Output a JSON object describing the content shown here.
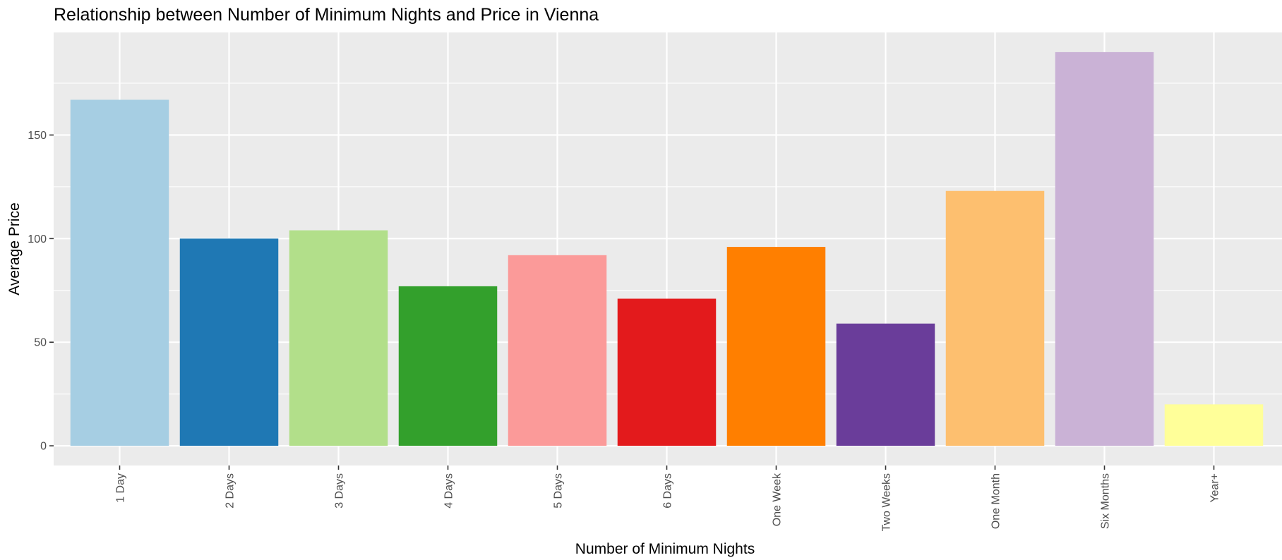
{
  "chart_data": {
    "type": "bar",
    "title": "Relationship between Number of Minimum Nights and Price in Vienna",
    "xlabel": "Number of Minimum Nights",
    "ylabel": "Average Price",
    "categories": [
      "1 Day",
      "2 Days",
      "3 Days",
      "4 Days",
      "5 Days",
      "6 Days",
      "One Week",
      "Two Weeks",
      "One Month",
      "Six Months",
      "Year+"
    ],
    "values": [
      167,
      100,
      104,
      77,
      92,
      71,
      96,
      59,
      123,
      190,
      20
    ],
    "colors": [
      "#a6cee3",
      "#1f78b4",
      "#b2df8a",
      "#33a02c",
      "#fb9a99",
      "#e31a1c",
      "#ff7f00",
      "#6a3d9a",
      "#fdbf6f",
      "#cab2d6",
      "#ffff99"
    ],
    "yticks": [
      0,
      50,
      100,
      150
    ],
    "ytick_labels": [
      "0",
      "50",
      "100",
      "150"
    ],
    "ylim": [
      -9.5,
      199.5
    ],
    "grid": true,
    "legend": "none",
    "background": "#ebebeb"
  }
}
